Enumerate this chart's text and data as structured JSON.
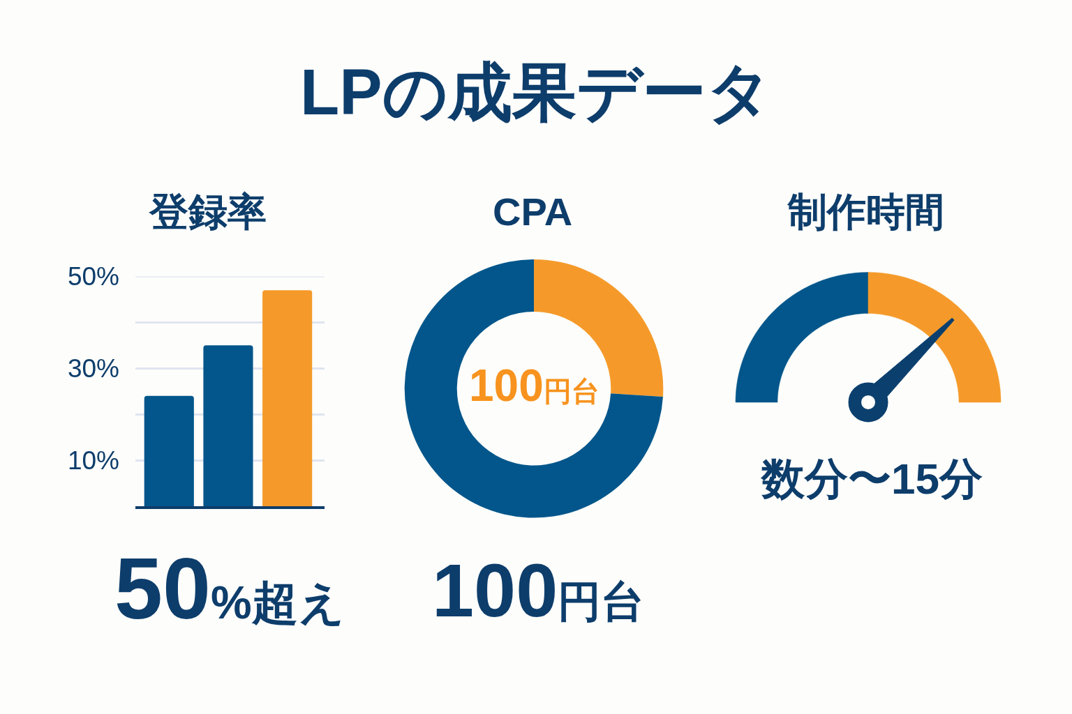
{
  "chart_data": [
    {
      "type": "other",
      "title": "LPの成果データ"
    },
    {
      "type": "bar",
      "title": "登録率",
      "categories": [
        null,
        null,
        null
      ],
      "values": [
        24,
        35,
        47
      ],
      "colors": [
        "#02568b",
        "#02568b",
        "#f59a2a"
      ],
      "ylim": [
        0,
        50
      ],
      "yticks": [
        {
          "value": 10,
          "label": "10%"
        },
        {
          "value": 20,
          "label": null
        },
        {
          "value": 30,
          "label": "30%"
        },
        {
          "value": 40,
          "label": null
        },
        {
          "value": 50,
          "label": "50%"
        }
      ],
      "grid": "y",
      "tick_labels": "y",
      "annotations": [
        "50%超え"
      ]
    },
    {
      "type": "donut",
      "title": "CPA",
      "categories": [
        null,
        null
      ],
      "values": [
        26,
        74
      ],
      "colors": [
        "#f59a2a",
        "#02568b"
      ],
      "annotations": [
        "100円台",
        "100円台"
      ]
    },
    {
      "type": "other",
      "title": "制作時間",
      "annotations": [
        "数分〜15分"
      ]
    }
  ]
}
